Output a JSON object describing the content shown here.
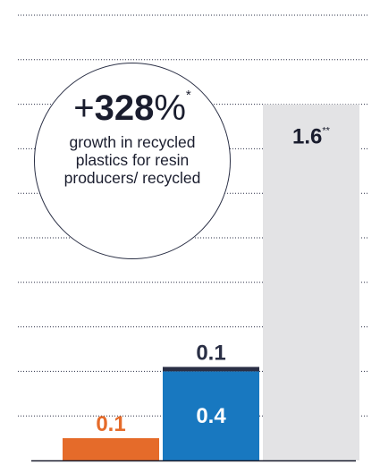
{
  "callout": {
    "prefix": "+",
    "value": "328",
    "unit": "%",
    "mark": "*",
    "caption": "growth in recycled plastics for resin producers/ recycled"
  },
  "chart_data": {
    "type": "bar",
    "stacked": true,
    "categories": [
      "",
      "",
      ""
    ],
    "ylim": [
      0,
      2.0
    ],
    "grid": true,
    "series": [
      {
        "values": [
          0.1,
          0.4,
          1.6
        ],
        "colors": [
          "#e56b2a",
          "#1878c0",
          "#e3e3e5"
        ]
      },
      {
        "values": [
          0,
          0.1,
          0
        ],
        "colors": [
          "#2a2f45",
          "#2a2f45",
          "#2a2f45"
        ]
      }
    ],
    "data_labels": [
      {
        "bar": 0,
        "text": "0.1",
        "mark": "",
        "color": "#e56b2a",
        "position": "above"
      },
      {
        "bar": 1,
        "text": "0.4",
        "mark": "",
        "color": "#ffffff",
        "position": "inside"
      },
      {
        "bar": 1,
        "text": "0.1",
        "mark": "",
        "color": "#2a2f45",
        "position": "above"
      },
      {
        "bar": 2,
        "text": "1.6",
        "mark": "**",
        "color": "#1a1d2e",
        "position": "inside-top"
      }
    ]
  }
}
